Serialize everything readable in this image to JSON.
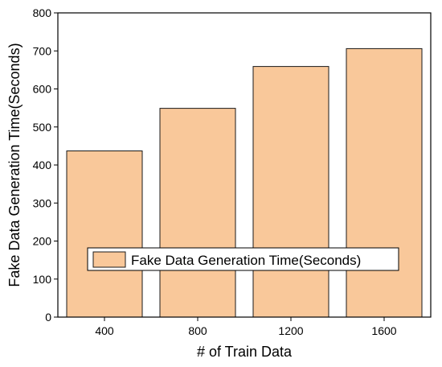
{
  "chart_data": {
    "type": "bar",
    "categories": [
      "400",
      "800",
      "1200",
      "1600"
    ],
    "series": [
      {
        "name": "Fake Data Generation Time(Seconds)",
        "values": [
          437,
          549,
          659,
          706
        ],
        "color": "#f9c89a",
        "edge_color": "#1a1a1a"
      }
    ],
    "title": "",
    "xlabel": "# of Train Data",
    "ylabel": "Fake Data Generation Time(Seconds)",
    "ylim": [
      0,
      800
    ],
    "yticks": [
      0,
      100,
      200,
      300,
      400,
      500,
      600,
      700,
      800
    ],
    "grid": false,
    "legend": {
      "placement": "lower-center",
      "label": "Fake Data Generation Time(Seconds)"
    }
  }
}
